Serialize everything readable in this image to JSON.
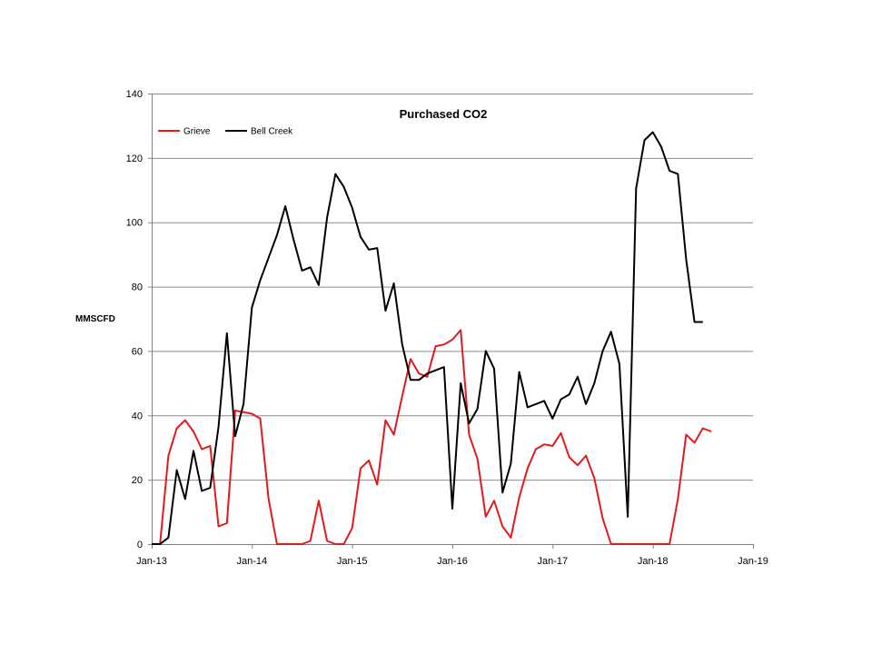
{
  "chart_data": {
    "type": "line",
    "title": "Purchased CO2",
    "xlabel": "",
    "ylabel": "MMSCFD",
    "ylim": [
      0,
      140
    ],
    "yticks": [
      0,
      20,
      40,
      60,
      80,
      100,
      120,
      140
    ],
    "xticks": [
      "Jan-13",
      "Jan-14",
      "Jan-15",
      "Jan-16",
      "Jan-17",
      "Jan-18",
      "Jan-19"
    ],
    "xlim": [
      "2013-01",
      "2019-01"
    ],
    "grid": "horizontal",
    "legend_position": "top-left",
    "series": [
      {
        "name": "Grieve",
        "color": "#e31a1c",
        "points": [
          [
            "2013-02",
            0
          ],
          [
            "2013-03",
            27.5
          ],
          [
            "2013-04",
            36
          ],
          [
            "2013-05",
            38.5
          ],
          [
            "2013-06",
            35
          ],
          [
            "2013-07",
            29.5
          ],
          [
            "2013-08",
            30.5
          ],
          [
            "2013-09",
            5.5
          ],
          [
            "2013-10",
            6.5
          ],
          [
            "2013-11",
            41.5
          ],
          [
            "2013-12",
            41
          ],
          [
            "2014-01",
            40.5
          ],
          [
            "2014-02",
            39
          ],
          [
            "2014-03",
            14
          ],
          [
            "2014-04",
            0
          ],
          [
            "2014-05",
            0
          ],
          [
            "2014-06",
            0
          ],
          [
            "2014-07",
            0
          ],
          [
            "2014-08",
            1
          ],
          [
            "2014-09",
            13.5
          ],
          [
            "2014-10",
            1
          ],
          [
            "2014-11",
            0
          ],
          [
            "2014-12",
            0
          ],
          [
            "2015-01",
            5
          ],
          [
            "2015-02",
            23.5
          ],
          [
            "2015-03",
            26
          ],
          [
            "2015-04",
            18.5
          ],
          [
            "2015-05",
            38.5
          ],
          [
            "2015-06",
            34
          ],
          [
            "2015-07",
            46
          ],
          [
            "2015-08",
            57.5
          ],
          [
            "2015-09",
            53
          ],
          [
            "2015-10",
            52
          ],
          [
            "2015-11",
            61.5
          ],
          [
            "2015-12",
            62
          ],
          [
            "2016-01",
            63.5
          ],
          [
            "2016-02",
            66.5
          ],
          [
            "2016-03",
            34
          ],
          [
            "2016-04",
            26.5
          ],
          [
            "2016-05",
            8.5
          ],
          [
            "2016-06",
            13.5
          ],
          [
            "2016-07",
            5.5
          ],
          [
            "2016-08",
            2
          ],
          [
            "2016-09",
            14.5
          ],
          [
            "2016-10",
            23.5
          ],
          [
            "2016-11",
            29.5
          ],
          [
            "2016-12",
            31
          ],
          [
            "2017-01",
            30.5
          ],
          [
            "2017-02",
            34.5
          ],
          [
            "2017-03",
            27
          ],
          [
            "2017-04",
            24.5
          ],
          [
            "2017-05",
            27.5
          ],
          [
            "2017-06",
            20.5
          ],
          [
            "2017-07",
            8
          ],
          [
            "2017-08",
            0
          ],
          [
            "2017-09",
            0
          ],
          [
            "2017-10",
            0
          ],
          [
            "2017-11",
            0
          ],
          [
            "2017-12",
            0
          ],
          [
            "2018-01",
            0
          ],
          [
            "2018-02",
            0
          ],
          [
            "2018-03",
            0
          ],
          [
            "2018-04",
            14
          ],
          [
            "2018-05",
            34
          ],
          [
            "2018-06",
            31.5
          ],
          [
            "2018-07",
            36
          ],
          [
            "2018-08",
            35
          ]
        ]
      },
      {
        "name": "Bell Creek",
        "color": "#000000",
        "points": [
          [
            "2013-01",
            0
          ],
          [
            "2013-02",
            0
          ],
          [
            "2013-03",
            2
          ],
          [
            "2013-04",
            23
          ],
          [
            "2013-05",
            14
          ],
          [
            "2013-06",
            29
          ],
          [
            "2013-07",
            16.5
          ],
          [
            "2013-08",
            17.5
          ],
          [
            "2013-09",
            36.5
          ],
          [
            "2013-10",
            65.5
          ],
          [
            "2013-11",
            33.5
          ],
          [
            "2013-12",
            43.5
          ],
          [
            "2014-01",
            73.5
          ],
          [
            "2014-02",
            82
          ],
          [
            "2014-03",
            89
          ],
          [
            "2014-04",
            96
          ],
          [
            "2014-05",
            105
          ],
          [
            "2014-06",
            94.5
          ],
          [
            "2014-07",
            85
          ],
          [
            "2014-08",
            86
          ],
          [
            "2014-09",
            80.5
          ],
          [
            "2014-10",
            101.5
          ],
          [
            "2014-11",
            115
          ],
          [
            "2014-12",
            111
          ],
          [
            "2015-01",
            104.5
          ],
          [
            "2015-02",
            95.5
          ],
          [
            "2015-03",
            91.5
          ],
          [
            "2015-04",
            92
          ],
          [
            "2015-05",
            72.5
          ],
          [
            "2015-06",
            81
          ],
          [
            "2015-07",
            62
          ],
          [
            "2015-08",
            51
          ],
          [
            "2015-09",
            51
          ],
          [
            "2015-10",
            53
          ],
          [
            "2015-11",
            54
          ],
          [
            "2015-12",
            55
          ],
          [
            "2016-01",
            11
          ],
          [
            "2016-02",
            50
          ],
          [
            "2016-03",
            37.5
          ],
          [
            "2016-04",
            42
          ],
          [
            "2016-05",
            60
          ],
          [
            "2016-06",
            54.5
          ],
          [
            "2016-07",
            16
          ],
          [
            "2016-08",
            25
          ],
          [
            "2016-09",
            53.5
          ],
          [
            "2016-10",
            42.5
          ],
          [
            "2016-11",
            43.5
          ],
          [
            "2016-12",
            44.5
          ],
          [
            "2017-01",
            39
          ],
          [
            "2017-02",
            45
          ],
          [
            "2017-03",
            46.5
          ],
          [
            "2017-04",
            52
          ],
          [
            "2017-05",
            43.5
          ],
          [
            "2017-06",
            50
          ],
          [
            "2017-07",
            60
          ],
          [
            "2017-08",
            66
          ],
          [
            "2017-09",
            56
          ],
          [
            "2017-10",
            8.5
          ],
          [
            "2017-11",
            110.5
          ],
          [
            "2017-12",
            125.5
          ],
          [
            "2018-01",
            128
          ],
          [
            "2018-02",
            123.5
          ],
          [
            "2018-03",
            116
          ],
          [
            "2018-04",
            115
          ],
          [
            "2018-05",
            88.5
          ],
          [
            "2018-06",
            69
          ],
          [
            "2018-07",
            69
          ]
        ]
      }
    ]
  }
}
